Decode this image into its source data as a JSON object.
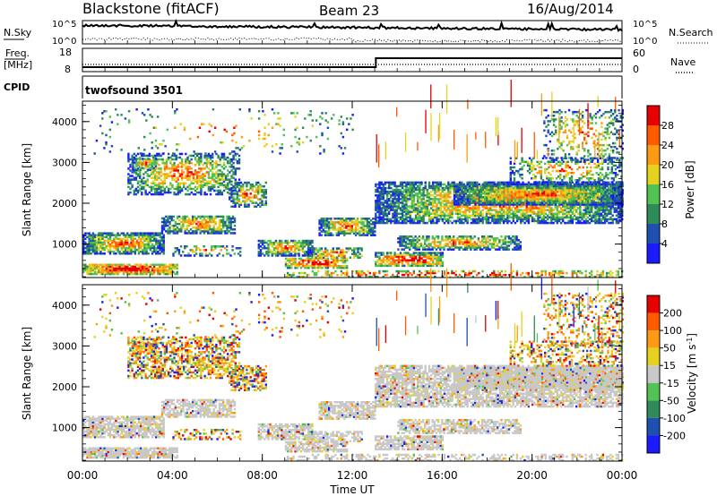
{
  "header": {
    "station": "Blackstone (fitACF)",
    "beam": "Beam 23",
    "date": "16/Aug/2014"
  },
  "labels": {
    "nsky": "N.Sky",
    "nsearch": "N.Search",
    "freq_line1": "Freq.",
    "freq_line2": "[MHz]",
    "nave": "Nave",
    "cpid": "CPID",
    "cpid_value": "twofsound 3501",
    "nsky_ticks": [
      "10^5",
      "10^0"
    ],
    "nsearch_ticks": [
      "10^5",
      "10^0"
    ],
    "freq_ticks": [
      "18",
      "8"
    ],
    "nave_ticks": [
      "60",
      "0"
    ]
  },
  "colors": {
    "power_scale": [
      "#1a1aff",
      "#1f4fb0",
      "#2e8b57",
      "#52c252",
      "#e6d21e",
      "#ff9a14",
      "#ff5a00",
      "#e60000"
    ],
    "velocity_scale": [
      "#1a1aff",
      "#1f4fb0",
      "#2e8b57",
      "#52c252",
      "#c8c8c8",
      "#e6d21e",
      "#ff9a14",
      "#ff5a00",
      "#e60000"
    ],
    "ground_scatter": "#c8c8c8"
  },
  "chart_data": [
    {
      "type": "heatmap",
      "name": "power",
      "ylabel": "Slant Range [km]",
      "xlabel": "Time UT",
      "x_ticks": [
        "00:00",
        "04:00",
        "08:00",
        "12:00",
        "16:00",
        "20:00",
        "00:00"
      ],
      "y_ticks": [
        "1000",
        "2000",
        "3000",
        "4000"
      ],
      "ylim": [
        180,
        4500
      ],
      "xlim_hours": [
        0,
        24
      ],
      "colorbar": {
        "label": "Power [dB]",
        "ticks": [
          "4",
          "8",
          "12",
          "16",
          "20",
          "24",
          "28"
        ],
        "range": [
          0,
          30
        ]
      }
    },
    {
      "type": "heatmap",
      "name": "velocity",
      "ylabel": "Slant Range [km]",
      "xlabel": "Time UT",
      "x_ticks": [
        "00:00",
        "04:00",
        "08:00",
        "12:00",
        "16:00",
        "20:00",
        "00:00"
      ],
      "y_ticks": [
        "1000",
        "2000",
        "3000",
        "4000"
      ],
      "ylim": [
        180,
        4500
      ],
      "xlim_hours": [
        0,
        24
      ],
      "colorbar": {
        "label": "Velocity [m s^-1]",
        "ticks": [
          "200",
          "100",
          "50",
          "15",
          "-15",
          "-50",
          "-100",
          "-200"
        ]
      }
    }
  ]
}
